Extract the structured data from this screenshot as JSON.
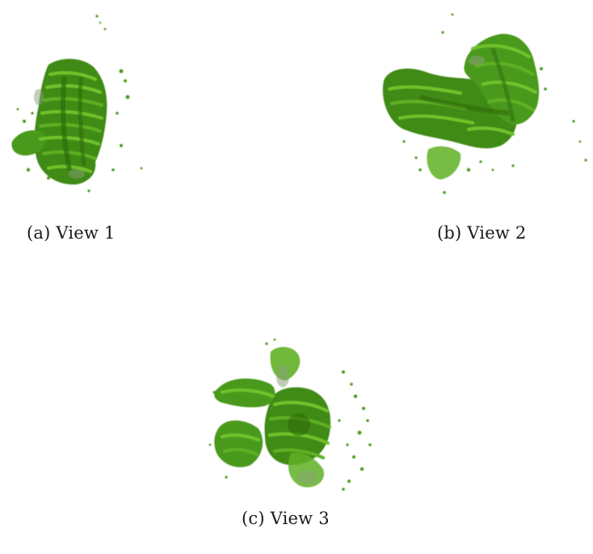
{
  "figure": {
    "palette": {
      "dark": "#2f6b0c",
      "mid": "#4a9a1a",
      "light": "#6fc22c",
      "highlight": "#9ad650",
      "ghost": "#8aa07a"
    },
    "subfigures": [
      {
        "id": "a",
        "caption": "(a) View 1",
        "icon": "molecular-density-render"
      },
      {
        "id": "b",
        "caption": "(b) View 2",
        "icon": "molecular-density-render"
      },
      {
        "id": "c",
        "caption": "(c) View 3",
        "icon": "molecular-density-render"
      }
    ]
  }
}
